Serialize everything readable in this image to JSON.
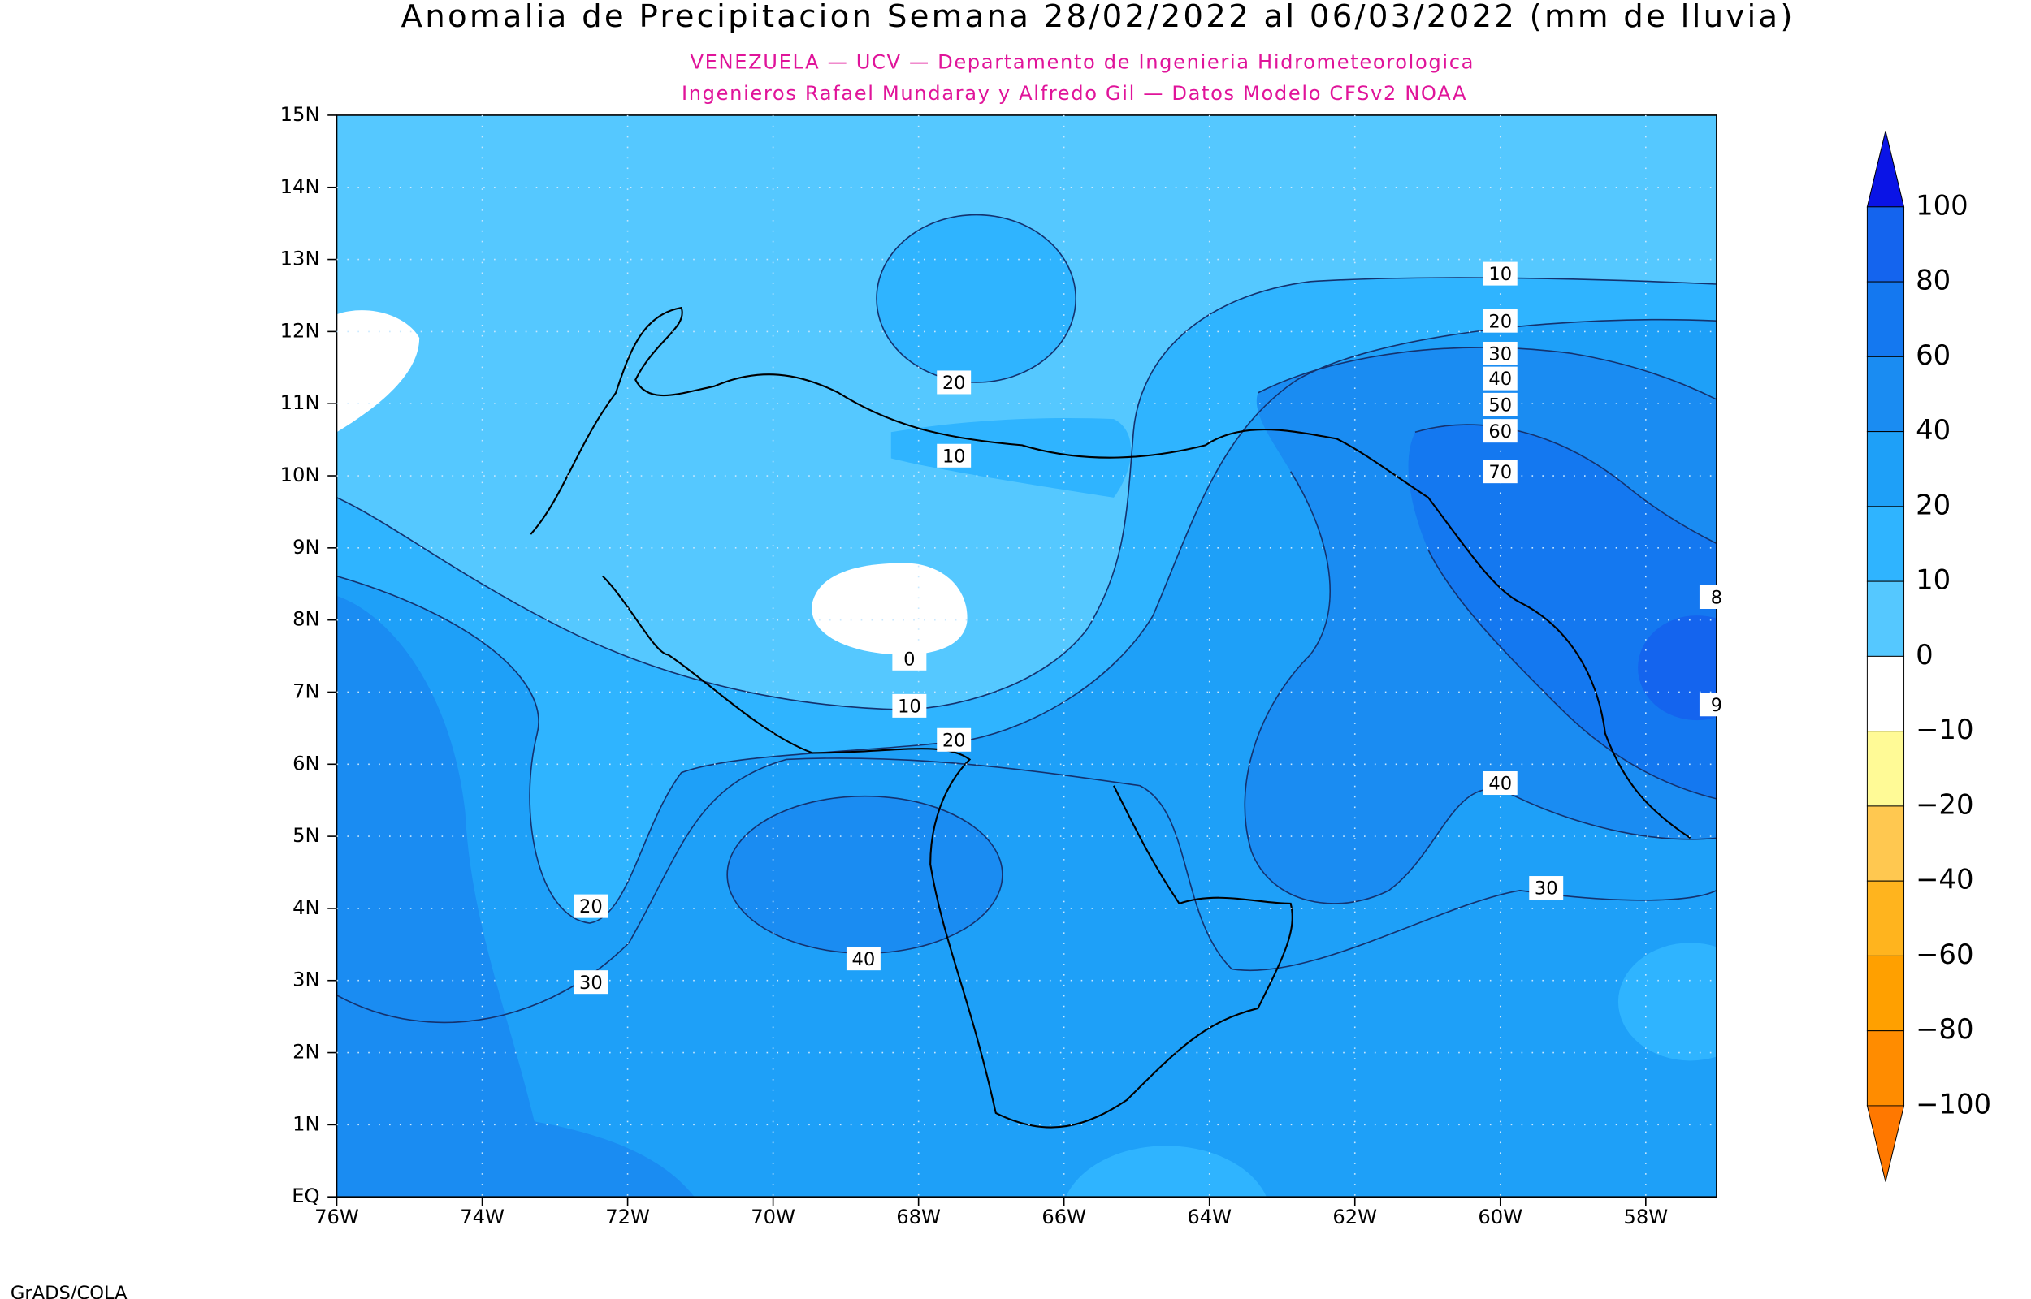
{
  "title": "Anomalia de Precipitacion Semana 28/02/2022 al 06/03/2022 (mm de lluvia)",
  "subtitle": [
    "VENEZUELA — UCV — Departamento de Ingenieria Hidrometeorologica",
    "Ingenieros Rafael Mundaray y Alfredo Gil — Datos Modelo CFSv2 NOAA"
  ],
  "lat_labels": [
    "15N",
    "14N",
    "13N",
    "12N",
    "11N",
    "10N",
    "9N",
    "8N",
    "7N",
    "6N",
    "5N",
    "4N",
    "3N",
    "2N",
    "1N",
    "EQ"
  ],
  "lon_labels": [
    "76W",
    "74W",
    "72W",
    "70W",
    "68W",
    "66W",
    "64W",
    "62W",
    "60W",
    "58W"
  ],
  "colorbar": {
    "labels": [
      "100",
      "80",
      "60",
      "40",
      "20",
      "10",
      "0",
      "−10",
      "−20",
      "−40",
      "−60",
      "−80",
      "−100"
    ],
    "colors": [
      "#0a14e6",
      "#1464ee",
      "#1478f0",
      "#1a8cf2",
      "#1ea0f8",
      "#2fb4ff",
      "#55c8ff",
      "#ffffff",
      "#fffa96",
      "#ffc850",
      "#ffb41e",
      "#ffa000",
      "#ff8c00",
      "#ff7800"
    ]
  },
  "contour_labels": [
    "10",
    "20",
    "30",
    "40",
    "50",
    "60",
    "70",
    "20",
    "10",
    "0",
    "10",
    "20",
    "40",
    "30",
    "20",
    "30",
    "40",
    "8",
    "9"
  ],
  "footer": "GrADS/COLA"
}
